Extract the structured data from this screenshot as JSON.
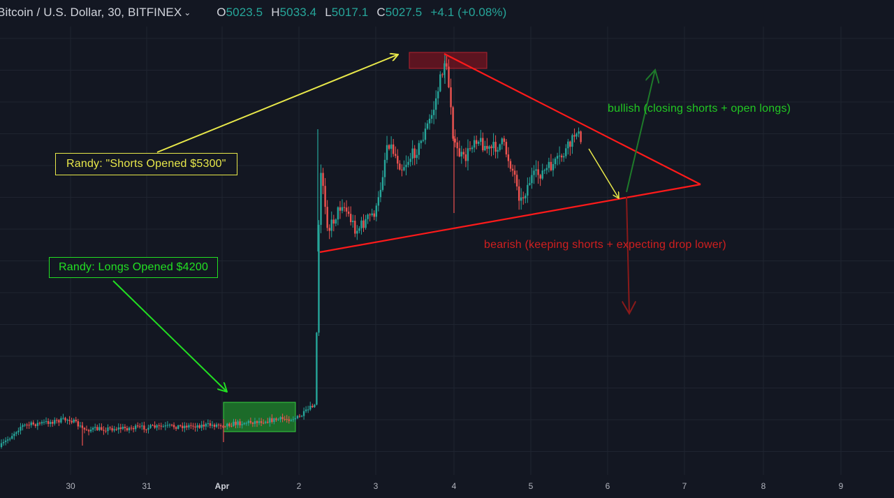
{
  "header": {
    "symbol": "Bitcoin / U.S. Dollar, 30, BITFINEX",
    "open_label": "O",
    "open": "5023.5",
    "high_label": "H",
    "high": "5033.4",
    "low_label": "L",
    "low": "5017.1",
    "close_label": "C",
    "close": "5027.5",
    "change": "+4.1 (+0.08%)"
  },
  "annotations": {
    "shorts": "Randy: \"Shorts Opened $5300\"",
    "longs": "Randy: Longs Opened $4200",
    "bullish": "bullish (closing shorts + open longs)",
    "bearish": "bearish (keeping shorts + expecting drop lower)"
  },
  "colors": {
    "background": "#131722",
    "grid": "#1f2430",
    "up": "#26a69a",
    "down": "#ef5350",
    "yellow": "#e8e84a",
    "green_arrow": "#22e022",
    "triangle": "#ff1a1a",
    "bullish_text": "#22c922",
    "bearish_text": "#d11f1f"
  },
  "chart_data": {
    "type": "candlestick",
    "x_tick_labels": [
      "30",
      "31",
      "Apr",
      "2",
      "3",
      "4",
      "5",
      "6",
      "7",
      "8",
      "9"
    ],
    "approx_price_path": [
      {
        "date": "Mar 29",
        "price": 4100
      },
      {
        "date": "Mar 30",
        "price": 4130
      },
      {
        "date": "Mar 31",
        "price": 4110
      },
      {
        "date": "Apr 1",
        "price": 4120
      },
      {
        "date": "Apr 2",
        "price": 4170
      },
      {
        "date": "Apr 2",
        "price": 4950
      },
      {
        "date": "Apr 3",
        "price": 5050
      },
      {
        "date": "Apr 4",
        "price": 5300
      },
      {
        "date": "Apr 4",
        "price": 4900
      },
      {
        "date": "Apr 5",
        "price": 4950
      },
      {
        "date": "Apr 6",
        "price": 5030
      }
    ]
  }
}
